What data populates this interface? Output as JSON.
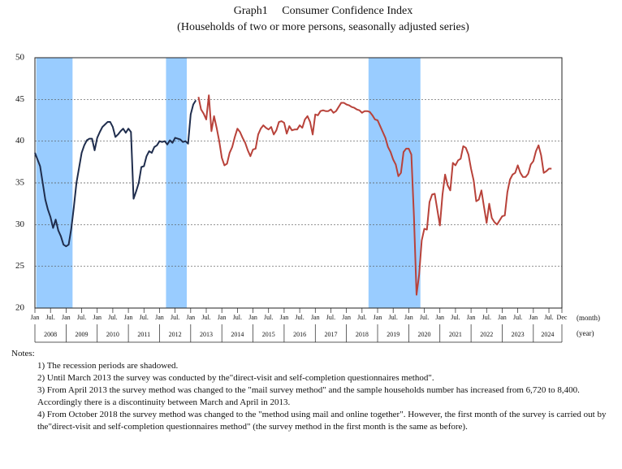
{
  "chart_data": {
    "type": "line",
    "title": "Graph1　 Consumer Confidence Index",
    "subtitle": "(Households of two or more persons, seasonally adjusted series)",
    "x_unit_label": "(month)",
    "group_unit_label": "(year)",
    "xlim": [
      "2008-01",
      "2024-12"
    ],
    "ylim": [
      20,
      50
    ],
    "yticks": [
      20,
      25,
      30,
      35,
      40,
      45,
      50
    ],
    "grid": true,
    "xticks": [
      {
        "value": "2008-01",
        "label": "Jan"
      },
      {
        "value": "2008-07",
        "label": "Jul."
      },
      {
        "value": "2009-01",
        "label": "Jan"
      },
      {
        "value": "2009-07",
        "label": "Jul."
      },
      {
        "value": "2010-01",
        "label": "Jan"
      },
      {
        "value": "2010-07",
        "label": "Jul."
      },
      {
        "value": "2011-01",
        "label": "Jan"
      },
      {
        "value": "2011-07",
        "label": "Jul."
      },
      {
        "value": "2012-01",
        "label": "Jan"
      },
      {
        "value": "2012-07",
        "label": "Jul."
      },
      {
        "value": "2013-01",
        "label": "Jan"
      },
      {
        "value": "2013-07",
        "label": "Jul."
      },
      {
        "value": "2014-01",
        "label": "Jan"
      },
      {
        "value": "2014-07",
        "label": "Jul."
      },
      {
        "value": "2015-01",
        "label": "Jan"
      },
      {
        "value": "2015-07",
        "label": "Jul."
      },
      {
        "value": "2016-01",
        "label": "Jan"
      },
      {
        "value": "2016-07",
        "label": "Jul."
      },
      {
        "value": "2017-01",
        "label": "Jan"
      },
      {
        "value": "2017-07",
        "label": "Jul."
      },
      {
        "value": "2018-01",
        "label": "Jan"
      },
      {
        "value": "2018-07",
        "label": "Jul."
      },
      {
        "value": "2019-01",
        "label": "Jan"
      },
      {
        "value": "2019-07",
        "label": "Jul."
      },
      {
        "value": "2020-01",
        "label": "Jan"
      },
      {
        "value": "2020-07",
        "label": "Jul."
      },
      {
        "value": "2021-01",
        "label": "Jan"
      },
      {
        "value": "2021-07",
        "label": "Jul."
      },
      {
        "value": "2022-01",
        "label": "Jan"
      },
      {
        "value": "2022-07",
        "label": "Jul."
      },
      {
        "value": "2023-01",
        "label": "Jan"
      },
      {
        "value": "2023-07",
        "label": "Jul."
      },
      {
        "value": "2024-01",
        "label": "Jan"
      },
      {
        "value": "2024-07",
        "label": "Jul."
      },
      {
        "value": "2024-12",
        "label": "Dec"
      }
    ],
    "years": [
      "2008",
      "2009",
      "2010",
      "2011",
      "2012",
      "2013",
      "2014",
      "2015",
      "2016",
      "2017",
      "2018",
      "2019",
      "2020",
      "2021",
      "2022",
      "2023",
      "2024"
    ],
    "recession_color": "#99ccff",
    "recession_periods": [
      [
        "2008-02",
        "2009-03"
      ],
      [
        "2012-04",
        "2012-11"
      ],
      [
        "2018-10",
        "2020-05"
      ]
    ],
    "series": [
      {
        "color": "#1f2d4d",
        "x": [
          "2008-01",
          "2008-02",
          "2008-03",
          "2008-04",
          "2008-05",
          "2008-06",
          "2008-07",
          "2008-08",
          "2008-09",
          "2008-10",
          "2008-11",
          "2008-12",
          "2009-01",
          "2009-02",
          "2009-03",
          "2009-04",
          "2009-05",
          "2009-06",
          "2009-07",
          "2009-08",
          "2009-09",
          "2009-10",
          "2009-11",
          "2009-12",
          "2010-01",
          "2010-02",
          "2010-03",
          "2010-04",
          "2010-05",
          "2010-06",
          "2010-07",
          "2010-08",
          "2010-09",
          "2010-10",
          "2010-11",
          "2010-12",
          "2011-01",
          "2011-02",
          "2011-03",
          "2011-04",
          "2011-05",
          "2011-06",
          "2011-07",
          "2011-08",
          "2011-09",
          "2011-10",
          "2011-11",
          "2011-12",
          "2012-01",
          "2012-02",
          "2012-03",
          "2012-04",
          "2012-05",
          "2012-06",
          "2012-07",
          "2012-08",
          "2012-09",
          "2012-10",
          "2012-11",
          "2012-12",
          "2013-01",
          "2013-02",
          "2013-03"
        ],
        "values": [
          38.6,
          37.8,
          37.0,
          35.0,
          33.0,
          31.8,
          30.9,
          29.6,
          30.6,
          29.3,
          28.6,
          27.6,
          27.4,
          27.6,
          29.5,
          32.1,
          35.0,
          36.8,
          38.6,
          39.5,
          40.1,
          40.3,
          40.3,
          38.9,
          40.4,
          41.1,
          41.7,
          42.0,
          42.3,
          42.3,
          41.7,
          40.5,
          40.8,
          41.2,
          41.5,
          41.0,
          41.5,
          41.1,
          33.1,
          34.0,
          35.0,
          36.9,
          37.0,
          38.2,
          38.8,
          38.6,
          39.3,
          39.5,
          40.0,
          39.9,
          40.0,
          39.6,
          40.1,
          39.8,
          40.4,
          40.3,
          40.2,
          39.9,
          40.0,
          39.7,
          43.2,
          44.4,
          44.9
        ]
      },
      {
        "color": "#b8423a",
        "x": [
          "2013-04",
          "2013-05",
          "2013-06",
          "2013-07",
          "2013-08",
          "2013-09",
          "2013-10",
          "2013-11",
          "2013-12",
          "2014-01",
          "2014-02",
          "2014-03",
          "2014-04",
          "2014-05",
          "2014-06",
          "2014-07",
          "2014-08",
          "2014-09",
          "2014-10",
          "2014-11",
          "2014-12",
          "2015-01",
          "2015-02",
          "2015-03",
          "2015-04",
          "2015-05",
          "2015-06",
          "2015-07",
          "2015-08",
          "2015-09",
          "2015-10",
          "2015-11",
          "2015-12",
          "2016-01",
          "2016-02",
          "2016-03",
          "2016-04",
          "2016-05",
          "2016-06",
          "2016-07",
          "2016-08",
          "2016-09",
          "2016-10",
          "2016-11",
          "2016-12",
          "2017-01",
          "2017-02",
          "2017-03",
          "2017-04",
          "2017-05",
          "2017-06",
          "2017-07",
          "2017-08",
          "2017-09",
          "2017-10",
          "2017-11",
          "2017-12",
          "2018-01",
          "2018-02",
          "2018-03",
          "2018-04",
          "2018-05",
          "2018-06",
          "2018-07",
          "2018-08",
          "2018-09",
          "2018-10",
          "2018-11",
          "2018-12",
          "2019-01",
          "2019-02",
          "2019-03",
          "2019-04",
          "2019-05",
          "2019-06",
          "2019-07",
          "2019-08",
          "2019-09",
          "2019-10",
          "2019-11",
          "2019-12",
          "2020-01",
          "2020-02",
          "2020-03",
          "2020-04",
          "2020-05",
          "2020-06",
          "2020-07",
          "2020-08",
          "2020-09",
          "2020-10",
          "2020-11",
          "2020-12",
          "2021-01",
          "2021-02",
          "2021-03",
          "2021-04",
          "2021-05",
          "2021-06",
          "2021-07",
          "2021-08",
          "2021-09",
          "2021-10",
          "2021-11",
          "2021-12",
          "2022-01",
          "2022-02",
          "2022-03",
          "2022-04",
          "2022-05",
          "2022-06",
          "2022-07",
          "2022-08",
          "2022-09",
          "2022-10",
          "2022-11",
          "2022-12",
          "2023-01",
          "2023-02",
          "2023-03",
          "2023-04",
          "2023-05",
          "2023-06",
          "2023-07",
          "2023-08",
          "2023-09",
          "2023-10",
          "2023-11",
          "2023-12",
          "2024-01",
          "2024-02",
          "2024-03",
          "2024-04",
          "2024-05",
          "2024-06",
          "2024-07",
          "2024-08"
        ],
        "values": [
          45.3,
          43.8,
          43.3,
          42.6,
          45.5,
          41.2,
          43.0,
          41.6,
          40.0,
          38.0,
          37.1,
          37.3,
          38.6,
          39.3,
          40.5,
          41.5,
          41.1,
          40.4,
          39.8,
          38.9,
          38.2,
          39.0,
          39.1,
          40.8,
          41.5,
          41.9,
          41.6,
          41.4,
          41.7,
          40.8,
          41.3,
          42.3,
          42.4,
          42.2,
          40.9,
          41.8,
          41.3,
          41.4,
          41.4,
          41.9,
          41.6,
          42.6,
          43.0,
          42.3,
          40.8,
          43.2,
          43.1,
          43.6,
          43.7,
          43.6,
          43.6,
          43.8,
          43.4,
          43.6,
          44.1,
          44.6,
          44.6,
          44.4,
          44.3,
          44.1,
          44.0,
          43.8,
          43.7,
          43.4,
          43.6,
          43.6,
          43.5,
          43.1,
          42.6,
          42.5,
          41.8,
          41.1,
          40.4,
          39.3,
          38.7,
          37.8,
          37.2,
          35.8,
          36.2,
          38.7,
          39.1,
          39.1,
          38.4,
          31.0,
          21.6,
          24.0,
          28.1,
          29.5,
          29.4,
          32.7,
          33.6,
          33.7,
          31.8,
          29.9,
          33.6,
          36.0,
          34.7,
          34.1,
          37.4,
          37.1,
          37.7,
          37.9,
          39.4,
          39.2,
          38.4,
          36.7,
          35.3,
          32.8,
          33.0,
          34.1,
          32.1,
          30.2,
          32.5,
          30.8,
          30.3,
          30.0,
          30.5,
          31.0,
          31.1,
          33.9,
          35.4,
          36.0,
          36.2,
          37.1,
          36.2,
          35.7,
          35.7,
          36.1,
          37.2,
          37.6,
          38.8,
          39.5,
          38.3,
          36.2,
          36.4,
          36.7,
          36.7
        ]
      }
    ],
    "notes": {
      "heading": "Notes:",
      "items": [
        "1) The recession periods are shadowed.",
        "2) Until March 2013 the survey was conducted by the\"direct-visit and self-completion questionnaires method\".",
        "3) From April 2013 the survey method was changed to the \"mail survey method\" and the sample households number has increased from 6,720 to 8,400. Accordingly there is a discontinuity between March and April in 2013.",
        "4) From October 2018 the survey method was changed to the \"method using mail and online together\". However, the first month of the survey is carried out by the\"direct-visit and self-completion questionnaires method\" (the survey method in the first month is the same as before)."
      ]
    }
  }
}
